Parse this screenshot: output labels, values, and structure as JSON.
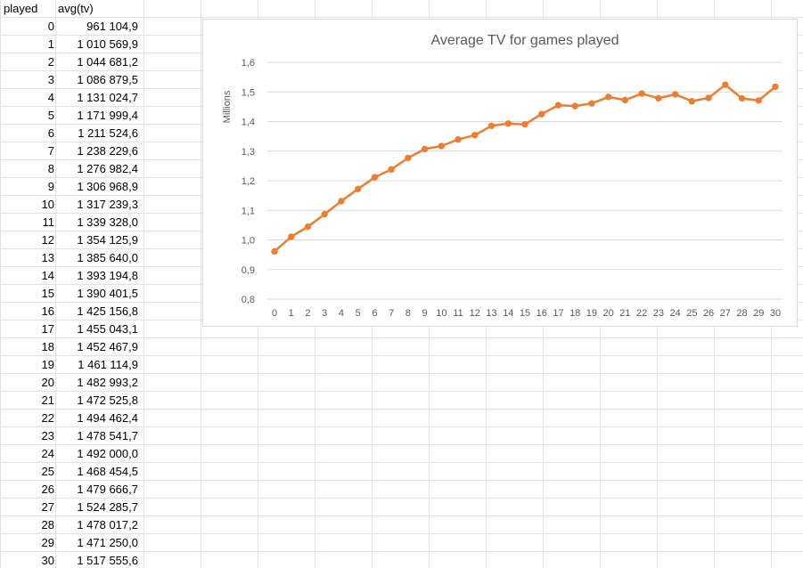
{
  "sheet": {
    "header_played": "played",
    "header_avg": "avg(tv)",
    "rows": [
      {
        "played": "0",
        "avg": "961 104,9"
      },
      {
        "played": "1",
        "avg": "1 010 569,9"
      },
      {
        "played": "2",
        "avg": "1 044 681,2"
      },
      {
        "played": "3",
        "avg": "1 086 879,5"
      },
      {
        "played": "4",
        "avg": "1 131 024,7"
      },
      {
        "played": "5",
        "avg": "1 171 999,4"
      },
      {
        "played": "6",
        "avg": "1 211 524,6"
      },
      {
        "played": "7",
        "avg": "1 238 229,6"
      },
      {
        "played": "8",
        "avg": "1 276 982,4"
      },
      {
        "played": "9",
        "avg": "1 306 968,9"
      },
      {
        "played": "10",
        "avg": "1 317 239,3"
      },
      {
        "played": "11",
        "avg": "1 339 328,0"
      },
      {
        "played": "12",
        "avg": "1 354 125,9"
      },
      {
        "played": "13",
        "avg": "1 385 640,0"
      },
      {
        "played": "14",
        "avg": "1 393 194,8"
      },
      {
        "played": "15",
        "avg": "1 390 401,5"
      },
      {
        "played": "16",
        "avg": "1 425 156,8"
      },
      {
        "played": "17",
        "avg": "1 455 043,1"
      },
      {
        "played": "18",
        "avg": "1 452 467,9"
      },
      {
        "played": "19",
        "avg": "1 461 114,9"
      },
      {
        "played": "20",
        "avg": "1 482 993,2"
      },
      {
        "played": "21",
        "avg": "1 472 525,8"
      },
      {
        "played": "22",
        "avg": "1 494 462,4"
      },
      {
        "played": "23",
        "avg": "1 478 541,7"
      },
      {
        "played": "24",
        "avg": "1 492 000,0"
      },
      {
        "played": "25",
        "avg": "1 468 454,5"
      },
      {
        "played": "26",
        "avg": "1 479 666,7"
      },
      {
        "played": "27",
        "avg": "1 524 285,7"
      },
      {
        "played": "28",
        "avg": "1 478 017,2"
      },
      {
        "played": "29",
        "avg": "1 471 250,0"
      },
      {
        "played": "30",
        "avg": "1 517 555,6"
      }
    ]
  },
  "chart_data": {
    "type": "line",
    "title": "Average TV for games played",
    "xlabel": "",
    "ylabel": "Millions",
    "x": [
      "0",
      "1",
      "2",
      "3",
      "4",
      "5",
      "6",
      "7",
      "8",
      "9",
      "10",
      "11",
      "12",
      "13",
      "14",
      "15",
      "16",
      "17",
      "18",
      "19",
      "20",
      "21",
      "22",
      "23",
      "24",
      "25",
      "26",
      "27",
      "28",
      "29",
      "30"
    ],
    "y": [
      0.9611049,
      1.0105699,
      1.0446812,
      1.0868795,
      1.1310247,
      1.1719994,
      1.2115246,
      1.2382296,
      1.2769824,
      1.3069689,
      1.3172393,
      1.339328,
      1.3541259,
      1.38564,
      1.3931948,
      1.3904015,
      1.4251568,
      1.4550431,
      1.4524679,
      1.4611149,
      1.4829932,
      1.4725258,
      1.4944624,
      1.4785417,
      1.492,
      1.4684545,
      1.4796667,
      1.5242857,
      1.4780172,
      1.47125,
      1.5175556
    ],
    "ylim": [
      0.8,
      1.6
    ],
    "yticks": [
      "0,8",
      "0,9",
      "1,0",
      "1,1",
      "1,2",
      "1,3",
      "1,4",
      "1,5",
      "1,6"
    ],
    "grid": true,
    "legend": "none",
    "colors": {
      "line": "#ED7D31",
      "grid": "#d9d9d9",
      "text": "#595959"
    }
  }
}
